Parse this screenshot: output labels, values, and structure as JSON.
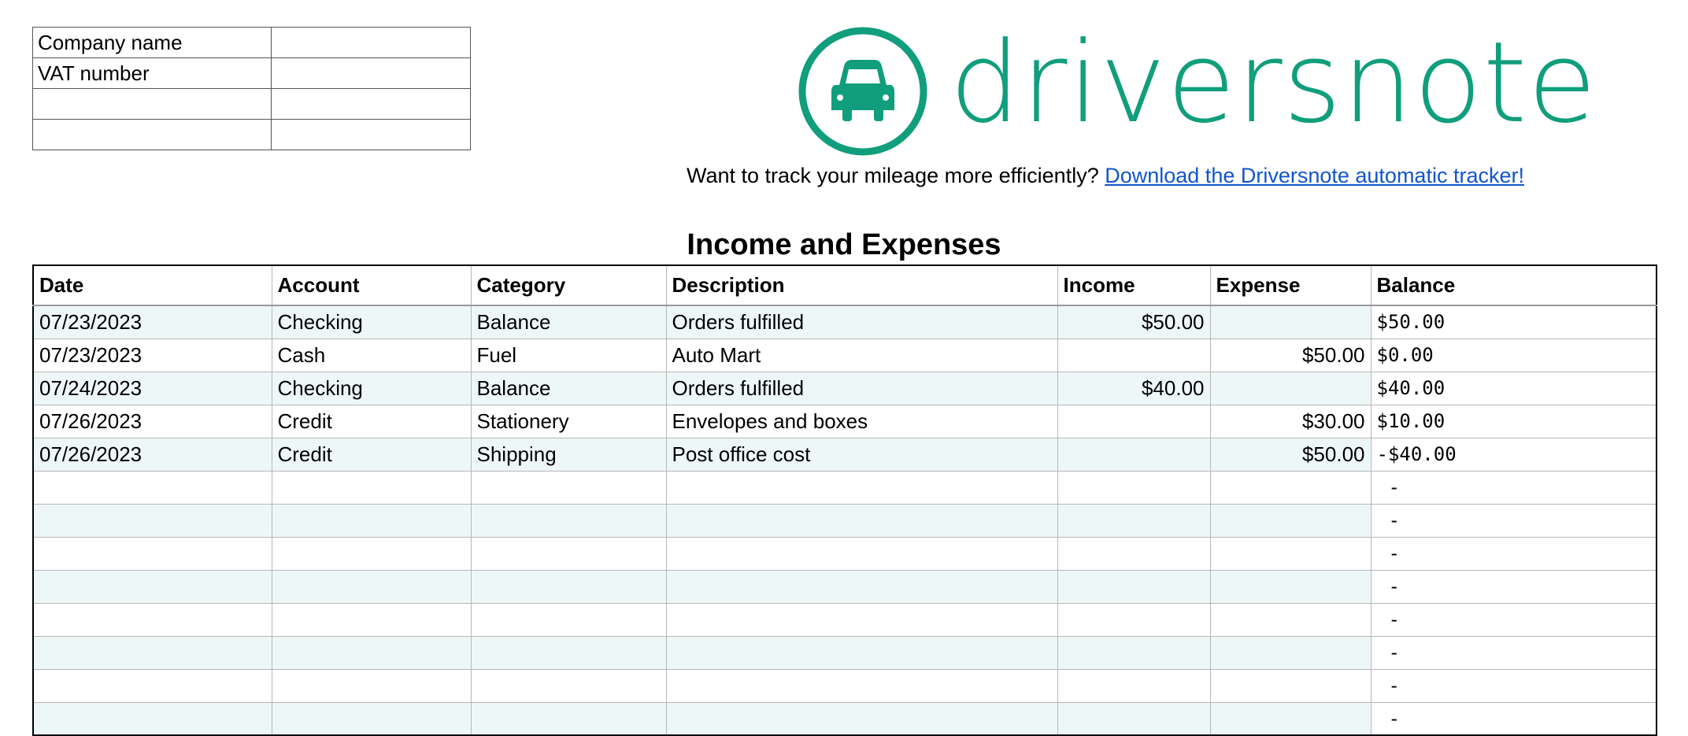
{
  "company_info": [
    {
      "label": "Company name",
      "value": ""
    },
    {
      "label": "VAT number",
      "value": ""
    },
    {
      "label": "",
      "value": ""
    },
    {
      "label": "",
      "value": ""
    }
  ],
  "logo": {
    "text": "driversnote",
    "icon": "car-icon",
    "color": "#109e7c"
  },
  "promo": {
    "text": "Want to track your mileage more efficiently? ",
    "link": "Download the Driversnote automatic tracker!"
  },
  "title": "Income and Expenses",
  "table": {
    "columns": [
      "Date",
      "Account",
      "Category",
      "Description",
      "Income",
      "Expense",
      "Balance"
    ],
    "rows": [
      [
        "07/23/2023",
        "Checking",
        "Balance",
        "Orders fulfilled",
        "$50.00",
        "",
        "$50.00"
      ],
      [
        "07/23/2023",
        "Cash",
        "Fuel",
        "Auto Mart",
        "",
        "$50.00",
        "$0.00"
      ],
      [
        "07/24/2023",
        "Checking",
        "Balance",
        "Orders fulfilled",
        "$40.00",
        "",
        "$40.00"
      ],
      [
        "07/26/2023",
        "Credit",
        "Stationery",
        "Envelopes and boxes",
        "",
        "$30.00",
        "$10.00"
      ],
      [
        "07/26/2023",
        "Credit",
        "Shipping",
        "Post office cost",
        "",
        "$50.00",
        "-$40.00"
      ],
      [
        "",
        "",
        "",
        "",
        "",
        "",
        "-"
      ],
      [
        "",
        "",
        "",
        "",
        "",
        "",
        "-"
      ],
      [
        "",
        "",
        "",
        "",
        "",
        "",
        "-"
      ],
      [
        "",
        "",
        "",
        "",
        "",
        "",
        "-"
      ],
      [
        "",
        "",
        "",
        "",
        "",
        "",
        "-"
      ],
      [
        "",
        "",
        "",
        "",
        "",
        "",
        "-"
      ],
      [
        "",
        "",
        "",
        "",
        "",
        "",
        "-"
      ],
      [
        "",
        "",
        "",
        "",
        "",
        "",
        "-"
      ]
    ],
    "row_tint": "#eef7f7"
  }
}
